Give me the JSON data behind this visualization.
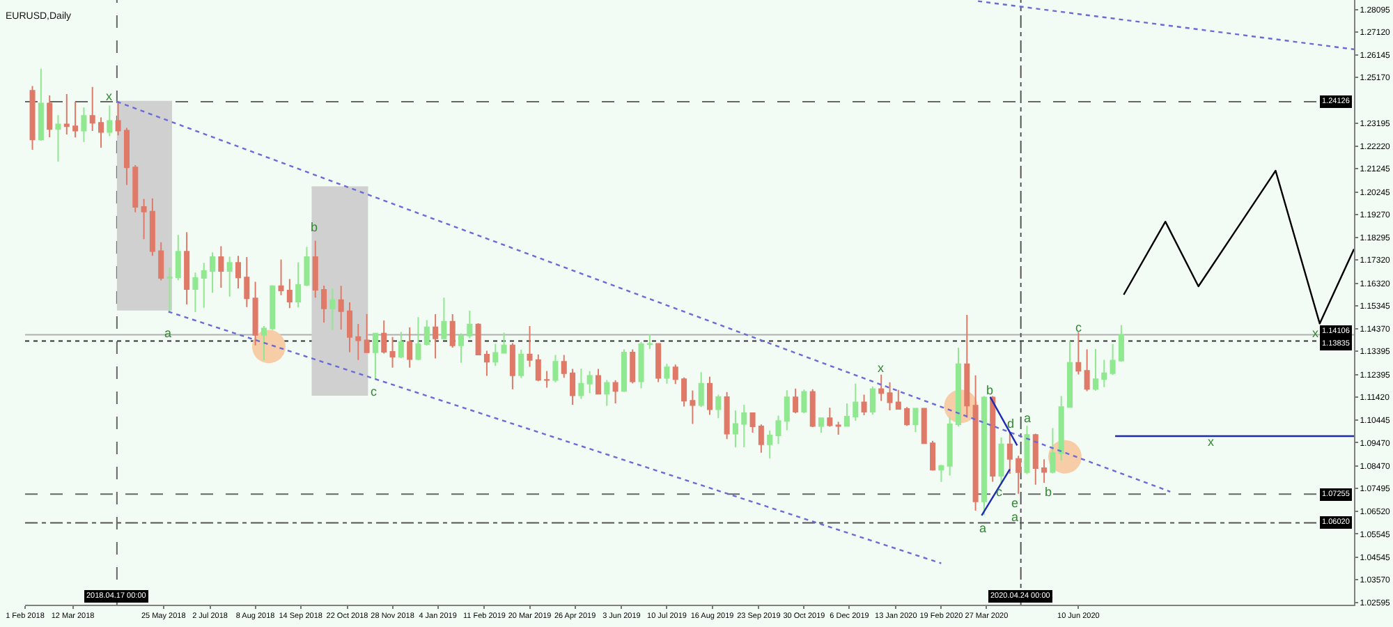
{
  "chart_data": {
    "type": "candlestick",
    "title": "EURUSD,Daily",
    "x": [
      "2018-02-07",
      "2018-02-14",
      "2018-02-21",
      "2018-02-28",
      "2018-03-07",
      "2018-03-14",
      "2018-03-21",
      "2018-03-28",
      "2018-04-04",
      "2018-04-11",
      "2018-04-18",
      "2018-04-25",
      "2018-05-02",
      "2018-05-09",
      "2018-05-16",
      "2018-05-23",
      "2018-05-30",
      "2018-06-06",
      "2018-06-13",
      "2018-06-20",
      "2018-06-27",
      "2018-07-04",
      "2018-07-11",
      "2018-07-18",
      "2018-07-25",
      "2018-08-01",
      "2018-08-08",
      "2018-08-15",
      "2018-08-22",
      "2018-08-29",
      "2018-09-05",
      "2018-09-12",
      "2018-09-19",
      "2018-09-26",
      "2018-10-03",
      "2018-10-10",
      "2018-10-17",
      "2018-10-24",
      "2018-10-31",
      "2018-11-07",
      "2018-11-14",
      "2018-11-21",
      "2018-11-28",
      "2018-12-05",
      "2018-12-12",
      "2018-12-19",
      "2018-12-26",
      "2019-01-02",
      "2019-01-09",
      "2019-01-16",
      "2019-01-23",
      "2019-01-30",
      "2019-02-06",
      "2019-02-13",
      "2019-02-20",
      "2019-02-27",
      "2019-03-06",
      "2019-03-13",
      "2019-03-20",
      "2019-03-27",
      "2019-04-03",
      "2019-04-10",
      "2019-04-17",
      "2019-04-24",
      "2019-05-01",
      "2019-05-08",
      "2019-05-15",
      "2019-05-22",
      "2019-05-29",
      "2019-06-05",
      "2019-06-12",
      "2019-06-19",
      "2019-06-26",
      "2019-07-03",
      "2019-07-10",
      "2019-07-17",
      "2019-07-24",
      "2019-07-31",
      "2019-08-07",
      "2019-08-14",
      "2019-08-21",
      "2019-08-28",
      "2019-09-04",
      "2019-09-11",
      "2019-09-18",
      "2019-09-25",
      "2019-10-02",
      "2019-10-09",
      "2019-10-16",
      "2019-10-23",
      "2019-10-30",
      "2019-11-06",
      "2019-11-13",
      "2019-11-20",
      "2019-11-27",
      "2019-12-04",
      "2019-12-11",
      "2019-12-18",
      "2019-12-25",
      "2020-01-01",
      "2020-01-08",
      "2020-01-15",
      "2020-01-22",
      "2020-01-29",
      "2020-02-05",
      "2020-02-12",
      "2020-02-19",
      "2020-02-26",
      "2020-03-04",
      "2020-03-11",
      "2020-03-18",
      "2020-03-25",
      "2020-04-01",
      "2020-04-08",
      "2020-04-15",
      "2020-04-22",
      "2020-04-29",
      "2020-05-06",
      "2020-05-13",
      "2020-05-20",
      "2020-05-27",
      "2020-06-03",
      "2020-06-10",
      "2020-06-17",
      "2020-06-24",
      "2020-07-01",
      "2020-07-08",
      "2020-07-15"
    ],
    "ohlc": [
      [
        1.246,
        1.248,
        1.2206,
        1.225
      ],
      [
        1.225,
        1.2555,
        1.2245,
        1.2405
      ],
      [
        1.2405,
        1.244,
        1.226,
        1.2295
      ],
      [
        1.2295,
        1.2355,
        1.2155,
        1.2315
      ],
      [
        1.2315,
        1.2446,
        1.2272,
        1.2307
      ],
      [
        1.2307,
        1.2413,
        1.2259,
        1.2288
      ],
      [
        1.2288,
        1.2388,
        1.224,
        1.2352
      ],
      [
        1.2352,
        1.2476,
        1.2287,
        1.2322
      ],
      [
        1.2322,
        1.2345,
        1.2215,
        1.2282
      ],
      [
        1.2282,
        1.2396,
        1.2265,
        1.233
      ],
      [
        1.233,
        1.2414,
        1.2268,
        1.2288
      ],
      [
        1.2288,
        1.23,
        1.2055,
        1.213
      ],
      [
        1.213,
        1.214,
        1.1937,
        1.196
      ],
      [
        1.196,
        1.1995,
        1.1822,
        1.194
      ],
      [
        1.194,
        1.1997,
        1.175,
        1.177
      ],
      [
        1.177,
        1.1808,
        1.1644,
        1.1655
      ],
      [
        1.1655,
        1.17,
        1.151,
        1.1658
      ],
      [
        1.1658,
        1.184,
        1.1645,
        1.1768
      ],
      [
        1.1768,
        1.1852,
        1.1541,
        1.1607
      ],
      [
        1.1607,
        1.1678,
        1.1508,
        1.1655
      ],
      [
        1.1655,
        1.172,
        1.1527,
        1.1685
      ],
      [
        1.1685,
        1.1765,
        1.1591,
        1.1745
      ],
      [
        1.1745,
        1.1791,
        1.1613,
        1.1685
      ],
      [
        1.1685,
        1.1746,
        1.1575,
        1.172
      ],
      [
        1.172,
        1.175,
        1.161,
        1.1657
      ],
      [
        1.1657,
        1.1745,
        1.153,
        1.1567
      ],
      [
        1.1567,
        1.1638,
        1.1365,
        1.141
      ],
      [
        1.141,
        1.1448,
        1.1301,
        1.1438
      ],
      [
        1.1438,
        1.1623,
        1.1431,
        1.162
      ],
      [
        1.162,
        1.1734,
        1.1581,
        1.1601
      ],
      [
        1.1601,
        1.165,
        1.1525,
        1.1553
      ],
      [
        1.1553,
        1.1722,
        1.1528,
        1.1625
      ],
      [
        1.1625,
        1.1788,
        1.162,
        1.1745
      ],
      [
        1.1745,
        1.1815,
        1.157,
        1.1604
      ],
      [
        1.1604,
        1.1622,
        1.1463,
        1.1524
      ],
      [
        1.1524,
        1.161,
        1.1432,
        1.156
      ],
      [
        1.156,
        1.1621,
        1.1433,
        1.1512
      ],
      [
        1.1512,
        1.155,
        1.1336,
        1.1401
      ],
      [
        1.1401,
        1.1457,
        1.1302,
        1.1387
      ],
      [
        1.1387,
        1.15,
        1.1334,
        1.1335
      ],
      [
        1.1335,
        1.1417,
        1.1216,
        1.1416
      ],
      [
        1.1416,
        1.1472,
        1.133,
        1.1337
      ],
      [
        1.1337,
        1.1401,
        1.1269,
        1.1316
      ],
      [
        1.1316,
        1.1423,
        1.131,
        1.138
      ],
      [
        1.138,
        1.1442,
        1.1269,
        1.1306
      ],
      [
        1.1306,
        1.1486,
        1.1301,
        1.137
      ],
      [
        1.137,
        1.1474,
        1.1364,
        1.1443
      ],
      [
        1.1443,
        1.1499,
        1.1309,
        1.1395
      ],
      [
        1.1395,
        1.157,
        1.139,
        1.1467
      ],
      [
        1.1467,
        1.1499,
        1.1355,
        1.1365
      ],
      [
        1.1365,
        1.1417,
        1.129,
        1.1407
      ],
      [
        1.1407,
        1.1514,
        1.1396,
        1.1455
      ],
      [
        1.1455,
        1.146,
        1.1323,
        1.1325
      ],
      [
        1.1325,
        1.1342,
        1.1234,
        1.1295
      ],
      [
        1.1295,
        1.1372,
        1.1277,
        1.1333
      ],
      [
        1.1333,
        1.142,
        1.133,
        1.1365
      ],
      [
        1.1365,
        1.1375,
        1.1176,
        1.1236
      ],
      [
        1.1236,
        1.1346,
        1.1225,
        1.1326
      ],
      [
        1.1326,
        1.1448,
        1.1273,
        1.1302
      ],
      [
        1.1302,
        1.1326,
        1.1211,
        1.1217
      ],
      [
        1.1217,
        1.1255,
        1.1183,
        1.1216
      ],
      [
        1.1216,
        1.1324,
        1.1206,
        1.1295
      ],
      [
        1.1295,
        1.1324,
        1.1226,
        1.1245
      ],
      [
        1.1245,
        1.1264,
        1.111,
        1.115
      ],
      [
        1.115,
        1.1265,
        1.1135,
        1.12
      ],
      [
        1.12,
        1.1254,
        1.116,
        1.1234
      ],
      [
        1.1234,
        1.1264,
        1.1157,
        1.1157
      ],
      [
        1.1157,
        1.1216,
        1.1105,
        1.1204
      ],
      [
        1.1204,
        1.1215,
        1.1116,
        1.1169
      ],
      [
        1.1169,
        1.1348,
        1.1165,
        1.1334
      ],
      [
        1.1334,
        1.1348,
        1.1202,
        1.121
      ],
      [
        1.121,
        1.138,
        1.1181,
        1.137
      ],
      [
        1.137,
        1.1412,
        1.135,
        1.1372
      ],
      [
        1.1372,
        1.1375,
        1.1207,
        1.1225
      ],
      [
        1.1225,
        1.1286,
        1.12,
        1.1271
      ],
      [
        1.1271,
        1.1283,
        1.1199,
        1.122
      ],
      [
        1.122,
        1.1227,
        1.1102,
        1.1127
      ],
      [
        1.1127,
        1.1171,
        1.1027,
        1.1108
      ],
      [
        1.1108,
        1.125,
        1.11,
        1.12
      ],
      [
        1.12,
        1.123,
        1.1066,
        1.109
      ],
      [
        1.109,
        1.1153,
        1.1052,
        1.1143
      ],
      [
        1.1143,
        1.1164,
        1.0962,
        1.0985
      ],
      [
        1.0985,
        1.1085,
        1.0926,
        1.1027
      ],
      [
        1.1027,
        1.111,
        1.0927,
        1.1074
      ],
      [
        1.1074,
        1.1075,
        1.099,
        1.1017
      ],
      [
        1.1017,
        1.1025,
        1.0904,
        1.094
      ],
      [
        1.094,
        1.0999,
        1.0879,
        1.0978
      ],
      [
        1.0978,
        1.1063,
        1.0941,
        1.104
      ],
      [
        1.104,
        1.1172,
        1.1,
        1.1142
      ],
      [
        1.1142,
        1.1179,
        1.1073,
        1.108
      ],
      [
        1.108,
        1.1175,
        1.1073,
        1.1165
      ],
      [
        1.1165,
        1.1176,
        1.1014,
        1.1018
      ],
      [
        1.1018,
        1.1055,
        1.0989,
        1.1052
      ],
      [
        1.1052,
        1.1097,
        1.1015,
        1.1021
      ],
      [
        1.1021,
        1.1036,
        1.0981,
        1.1018
      ],
      [
        1.1018,
        1.1116,
        1.1018,
        1.1059
      ],
      [
        1.1059,
        1.12,
        1.1041,
        1.112
      ],
      [
        1.112,
        1.1153,
        1.1065,
        1.108
      ],
      [
        1.108,
        1.1188,
        1.1067,
        1.1177
      ],
      [
        1.1177,
        1.1239,
        1.1126,
        1.116
      ],
      [
        1.116,
        1.1206,
        1.1086,
        1.112
      ],
      [
        1.112,
        1.1173,
        1.1089,
        1.1092
      ],
      [
        1.1092,
        1.11,
        1.1019,
        1.1025
      ],
      [
        1.1025,
        1.1096,
        1.0992,
        1.1093
      ],
      [
        1.1093,
        1.1095,
        1.0941,
        1.0944
      ],
      [
        1.0944,
        1.0955,
        1.0827,
        1.083
      ],
      [
        1.083,
        1.0851,
        1.0778,
        1.0847
      ],
      [
        1.0847,
        1.1054,
        1.0806,
        1.1026
      ],
      [
        1.1026,
        1.1355,
        1.1016,
        1.1284
      ],
      [
        1.1284,
        1.1496,
        1.1054,
        1.1106
      ],
      [
        1.1106,
        1.1236,
        1.0654,
        1.0694
      ],
      [
        1.0694,
        1.1147,
        1.0636,
        1.1141
      ],
      [
        1.1141,
        1.1147,
        1.0779,
        1.0804
      ],
      [
        1.0804,
        1.0969,
        1.0768,
        1.094
      ],
      [
        1.094,
        1.099,
        1.0813,
        1.0877
      ],
      [
        1.0877,
        1.089,
        1.0727,
        1.082
      ],
      [
        1.082,
        1.1019,
        1.0812,
        1.098
      ],
      [
        1.098,
        1.0985,
        1.0766,
        1.0837
      ],
      [
        1.0837,
        1.0875,
        1.0774,
        1.0821
      ],
      [
        1.0821,
        1.1009,
        1.0815,
        1.0902
      ],
      [
        1.0902,
        1.1147,
        1.087,
        1.11
      ],
      [
        1.11,
        1.1384,
        1.1097,
        1.129
      ],
      [
        1.129,
        1.1422,
        1.124,
        1.1256
      ],
      [
        1.1256,
        1.1348,
        1.1168,
        1.1178
      ],
      [
        1.1178,
        1.1349,
        1.117,
        1.122
      ],
      [
        1.122,
        1.1303,
        1.1185,
        1.1245
      ],
      [
        1.1245,
        1.1371,
        1.1238,
        1.13
      ],
      [
        1.13,
        1.1452,
        1.1295,
        1.141
      ]
    ],
    "colors": [
      "#e07a68",
      "#90e890",
      "#e07a68",
      "#90e890",
      "#e07a68",
      "#e07a68",
      "#90e890",
      "#e07a68",
      "#e07a68",
      "#90e890",
      "#e07a68",
      "#e07a68",
      "#e07a68",
      "#e07a68",
      "#e07a68",
      "#e07a68",
      "#90e890",
      "#90e890",
      "#e07a68",
      "#90e890",
      "#90e890",
      "#90e890",
      "#e07a68",
      "#90e890",
      "#e07a68",
      "#e07a68",
      "#e07a68",
      "#90e890",
      "#90e890",
      "#e07a68",
      "#e07a68",
      "#90e890",
      "#90e890",
      "#e07a68",
      "#e07a68",
      "#90e890",
      "#e07a68",
      "#e07a68",
      "#e07a68",
      "#e07a68",
      "#90e890",
      "#e07a68",
      "#e07a68",
      "#90e890",
      "#e07a68",
      "#90e890",
      "#90e890",
      "#e07a68",
      "#90e890",
      "#e07a68",
      "#90e890",
      "#90e890",
      "#e07a68",
      "#e07a68",
      "#90e890",
      "#90e890",
      "#e07a68",
      "#90e890",
      "#e07a68",
      "#e07a68",
      "#e07a68",
      "#90e890",
      "#e07a68",
      "#e07a68",
      "#90e890",
      "#90e890",
      "#e07a68",
      "#90e890",
      "#e07a68",
      "#90e890",
      "#e07a68",
      "#90e890",
      "#90e890",
      "#e07a68",
      "#90e890",
      "#e07a68",
      "#e07a68",
      "#e07a68",
      "#90e890",
      "#e07a68",
      "#90e890",
      "#e07a68",
      "#90e890",
      "#90e890",
      "#e07a68",
      "#e07a68",
      "#90e890",
      "#90e890",
      "#90e890",
      "#e07a68",
      "#90e890",
      "#e07a68",
      "#90e890",
      "#e07a68",
      "#e07a68",
      "#90e890",
      "#90e890",
      "#e07a68",
      "#90e890",
      "#e07a68",
      "#e07a68",
      "#e07a68",
      "#e07a68",
      "#90e890",
      "#e07a68",
      "#e07a68",
      "#90e890",
      "#90e890",
      "#90e890",
      "#e07a68",
      "#e07a68",
      "#90e890",
      "#e07a68",
      "#90e890",
      "#e07a68",
      "#e07a68",
      "#90e890",
      "#e07a68",
      "#e07a68",
      "#90e890",
      "#90e890",
      "#90e890",
      "#e07a68",
      "#e07a68",
      "#90e890",
      "#90e890",
      "#90e890",
      "#90e890"
    ],
    "series": [
      {
        "type": "scatter",
        "color": "#f6cda6",
        "marker": "circle",
        "x": [
          "2018-08-19",
          "2020-03-06",
          "2020-05-30"
        ],
        "values": [
          1.136,
          1.1103,
          1.0886
        ]
      },
      {
        "type": "line",
        "color": "#d0d0d0",
        "x": [
          "2018-04-17",
          "2018-06-01"
        ],
        "values": [
          1.2413,
          1.2413
        ],
        "lower": [
          1.1515,
          1.1515
        ],
        "upper": [
          1.2413,
          1.2413
        ]
      },
      {
        "type": "line",
        "color": "#d0d0d0",
        "x": [
          "2018-09-23",
          "2018-11-08"
        ],
        "values": [
          1.2045,
          1.2045
        ],
        "lower": [
          1.1149,
          1.1149
        ],
        "upper": [
          1.2045,
          1.2045
        ]
      },
      {
        "type": "line",
        "color": "#6a6ad8",
        "line_style": "dotted",
        "x": [
          "2018-04-17",
          "2020-08-24"
        ],
        "values": [
          1.2413,
          1.0736
        ]
      },
      {
        "type": "line",
        "color": "#6a6ad8",
        "line_style": "dotted",
        "x": [
          "2018-05-29",
          "2020-02-19"
        ],
        "values": [
          1.151,
          1.0428
        ]
      },
      {
        "type": "line",
        "color": "#6a6ad8",
        "line_style": "dotted",
        "x": [
          "2020-03-20",
          "2021-01-21"
        ],
        "values": [
          1.2845,
          1.2638
        ]
      },
      {
        "type": "line",
        "color": "#1c2bb0",
        "line_style": "solid",
        "x": [
          "2020-03-30",
          "2020-04-21"
        ],
        "values": [
          1.1143,
          1.0935
        ]
      },
      {
        "type": "line",
        "color": "#1c2bb0",
        "line_style": "solid",
        "x": [
          "2020-03-23",
          "2020-04-15"
        ],
        "values": [
          1.0634,
          1.0832
        ]
      },
      {
        "type": "line",
        "color": "#1c2bb0",
        "line_style": "solid",
        "x": [
          "2020-07-10",
          "2021-01-21"
        ],
        "values": [
          1.0975,
          1.0975
        ]
      },
      {
        "type": "line",
        "color": "#000000",
        "line_style": "solid",
        "x": [
          "2020-07-17",
          "2020-08-20",
          "2020-09-16",
          "2020-11-18",
          "2020-12-24",
          "2021-01-21"
        ],
        "values": [
          1.1583,
          1.1897,
          1.1619,
          1.2116,
          1.1459,
          1.1779
        ]
      }
    ],
    "xlim": [
      "2018-02-01",
      "2021-01-21"
    ],
    "xticks": [
      {
        "value": "2018-02-01",
        "label": "1 Feb 2018"
      },
      {
        "value": "2018-03-12",
        "label": "12 Mar 2018"
      },
      {
        "value": "2018-05-25",
        "label": "25 May 2018"
      },
      {
        "value": "2018-07-02",
        "label": "2 Jul 2018"
      },
      {
        "value": "2018-08-08",
        "label": "8 Aug 2018"
      },
      {
        "value": "2018-09-14",
        "label": "14 Sep 2018"
      },
      {
        "value": "2018-10-22",
        "label": "22 Oct 2018"
      },
      {
        "value": "2018-11-28",
        "label": "28 Nov 2018"
      },
      {
        "value": "2019-01-04",
        "label": "4 Jan 2019"
      },
      {
        "value": "2019-02-11",
        "label": "11 Feb 2019"
      },
      {
        "value": "2019-03-20",
        "label": "20 Mar 2019"
      },
      {
        "value": "2019-04-26",
        "label": "26 Apr 2019"
      },
      {
        "value": "2019-06-03",
        "label": "3 Jun 2019"
      },
      {
        "value": "2019-07-10",
        "label": "10 Jul 2019"
      },
      {
        "value": "2019-08-16",
        "label": "16 Aug 2019"
      },
      {
        "value": "2019-09-23",
        "label": "23 Sep 2019"
      },
      {
        "value": "2019-10-30",
        "label": "30 Oct 2019"
      },
      {
        "value": "2019-12-06",
        "label": "6 Dec 2019"
      },
      {
        "value": "2020-01-13",
        "label": "13 Jan 2020"
      },
      {
        "value": "2020-02-19",
        "label": "19 Feb 2020"
      },
      {
        "value": "2020-03-27",
        "label": "27 Mar 2020"
      },
      {
        "value": "2020-06-10",
        "label": "10 Jun 2020"
      }
    ],
    "ylim": [
      1.025,
      1.285
    ],
    "yticks": [
      1.28095,
      {
        "value": 1.2712,
        "label": "1.27120"
      },
      1.26145,
      {
        "value": 1.2517,
        "label": "1.25170"
      },
      1.23195,
      {
        "value": 1.2222,
        "label": "1.22220"
      },
      1.21245,
      1.20245,
      {
        "value": 1.1927,
        "label": "1.19270"
      },
      1.18295,
      {
        "value": 1.1732,
        "label": "1.17320"
      },
      {
        "value": 1.1632,
        "label": "1.16320"
      },
      1.15345,
      {
        "value": 1.1437,
        "label": "1.14370"
      },
      1.13395,
      1.12395,
      {
        "value": 1.1142,
        "label": "1.11420"
      },
      1.10445,
      {
        "value": 1.0947,
        "label": "1.09470"
      },
      {
        "value": 1.0847,
        "label": "1.08470"
      },
      1.07495,
      {
        "value": 1.0652,
        "label": "1.06520"
      },
      1.05545,
      1.04545,
      {
        "value": 1.0357,
        "label": "1.03570"
      },
      1.02595
    ],
    "ref_lines": [
      {
        "axis": "y",
        "value": 1.24126,
        "label": "1.24126",
        "color": "#666666",
        "line_style": "dashed"
      },
      {
        "axis": "y",
        "value": 1.14106,
        "label": "1.14106",
        "color": "#b0b0b0",
        "line_style": "solid"
      },
      {
        "axis": "y",
        "value": 1.13835,
        "label": "1.13835",
        "color": "#333333",
        "line_style": "dotted"
      },
      {
        "axis": "y",
        "value": 1.07255,
        "label": "1.07255",
        "color": "#666666",
        "line_style": "dashed"
      },
      {
        "axis": "y",
        "value": 1.0602,
        "label": "1.06020",
        "color": "#555555",
        "line_style": "dashdot"
      },
      {
        "axis": "x",
        "value": "2018-04-17",
        "label": "2018.04.17 00:00",
        "color": "#666666",
        "line_style": "dashed"
      },
      {
        "axis": "x",
        "value": "2020-04-24",
        "label": "2020.04.24 00:00",
        "color": "#555555",
        "line_style": "dashdot"
      }
    ],
    "annotations": [
      {
        "text": "x",
        "x": "2018-04-11",
        "y": 1.2437
      },
      {
        "text": "a",
        "x": "2018-05-29",
        "y": 1.1419
      },
      {
        "text": "b",
        "x": "2018-09-25",
        "y": 1.1873
      },
      {
        "text": "c",
        "x": "2018-11-13",
        "y": 1.1166
      },
      {
        "text": "x",
        "x": "2020-01-01",
        "y": 1.1268
      },
      {
        "text": "b",
        "x": "2020-03-30",
        "y": 1.1175
      },
      {
        "text": "d",
        "x": "2020-04-16",
        "y": 1.1028
      },
      {
        "text": "a",
        "x": "2020-04-29",
        "y": 1.1055
      },
      {
        "text": "c",
        "x": "2020-04-07",
        "y": 1.0734
      },
      {
        "text": "e",
        "x": "2020-04-19",
        "y": 1.0685
      },
      {
        "text": "a",
        "x": "2020-03-24",
        "y": 1.0578
      },
      {
        "text": "a",
        "x": "2020-04-19",
        "y": 1.0627
      },
      {
        "text": "b",
        "x": "2020-05-16",
        "y": 1.0734
      },
      {
        "text": "c",
        "x": "2020-06-10",
        "y": 1.1445
      },
      {
        "text": "x",
        "x": "2020-12-21",
        "y": 1.1419
      },
      {
        "text": "x",
        "x": "2020-09-26",
        "y": 1.095
      }
    ]
  }
}
